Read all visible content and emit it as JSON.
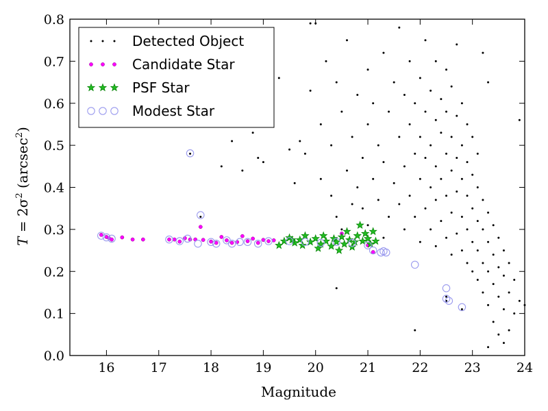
{
  "chart_data": {
    "type": "scatter",
    "title": "",
    "xlabel": "Magnitude",
    "ylabel_parts": {
      "pre": "T",
      "eq": " = 2σ",
      "sup1": "2",
      "mid": " (arcsec",
      "sup2": "2",
      "post": ")"
    },
    "xlim": [
      15.3,
      24.0
    ],
    "ylim": [
      0.0,
      0.8
    ],
    "xticks": [
      16,
      17,
      18,
      19,
      20,
      21,
      22,
      23,
      24
    ],
    "yticks": [
      0.0,
      0.1,
      0.2,
      0.3,
      0.4,
      0.5,
      0.6,
      0.7,
      0.8
    ],
    "grid": false,
    "legend_position": "top-left",
    "colors": {
      "detected": "#000000",
      "candidate": "#ff00ff",
      "psf": "#008000",
      "modest": "#9999ee"
    },
    "legend": [
      {
        "key": "detected",
        "label": "Detected Object"
      },
      {
        "key": "candidate",
        "label": "Candidate Star"
      },
      {
        "key": "psf",
        "label": "PSF Star"
      },
      {
        "key": "modest",
        "label": "Modest Star"
      }
    ],
    "series": [
      {
        "name": "Detected Object",
        "key": "detected",
        "points": [
          [
            17.6,
            0.48
          ],
          [
            17.8,
            0.33
          ],
          [
            18.2,
            0.45
          ],
          [
            18.4,
            0.51
          ],
          [
            18.6,
            0.44
          ],
          [
            18.8,
            0.53
          ],
          [
            18.9,
            0.47
          ],
          [
            19.0,
            0.46
          ],
          [
            19.1,
            0.6
          ],
          [
            19.3,
            0.66
          ],
          [
            19.5,
            0.49
          ],
          [
            19.6,
            0.41
          ],
          [
            19.7,
            0.51
          ],
          [
            19.8,
            0.48
          ],
          [
            19.9,
            0.63
          ],
          [
            19.9,
            0.79
          ],
          [
            20.0,
            0.79
          ],
          [
            20.1,
            0.42
          ],
          [
            20.1,
            0.55
          ],
          [
            20.2,
            0.7
          ],
          [
            20.3,
            0.38
          ],
          [
            20.3,
            0.5
          ],
          [
            20.4,
            0.33
          ],
          [
            20.4,
            0.65
          ],
          [
            20.5,
            0.58
          ],
          [
            20.5,
            0.3
          ],
          [
            20.6,
            0.44
          ],
          [
            20.6,
            0.75
          ],
          [
            20.7,
            0.36
          ],
          [
            20.7,
            0.52
          ],
          [
            20.8,
            0.62
          ],
          [
            20.8,
            0.4
          ],
          [
            20.9,
            0.35
          ],
          [
            20.9,
            0.47
          ],
          [
            21.0,
            0.55
          ],
          [
            21.0,
            0.31
          ],
          [
            21.0,
            0.68
          ],
          [
            21.1,
            0.42
          ],
          [
            21.1,
            0.6
          ],
          [
            21.2,
            0.37
          ],
          [
            21.2,
            0.5
          ],
          [
            21.3,
            0.28
          ],
          [
            21.3,
            0.46
          ],
          [
            21.3,
            0.72
          ],
          [
            21.4,
            0.33
          ],
          [
            21.4,
            0.58
          ],
          [
            21.5,
            0.41
          ],
          [
            21.5,
            0.65
          ],
          [
            21.6,
            0.36
          ],
          [
            21.6,
            0.52
          ],
          [
            21.6,
            0.78
          ],
          [
            21.7,
            0.3
          ],
          [
            21.7,
            0.45
          ],
          [
            21.7,
            0.62
          ],
          [
            21.8,
            0.38
          ],
          [
            21.8,
            0.55
          ],
          [
            21.8,
            0.7
          ],
          [
            21.9,
            0.33
          ],
          [
            21.9,
            0.48
          ],
          [
            21.9,
            0.6
          ],
          [
            22.0,
            0.27
          ],
          [
            22.0,
            0.42
          ],
          [
            22.0,
            0.52
          ],
          [
            22.0,
            0.66
          ],
          [
            22.1,
            0.35
          ],
          [
            22.1,
            0.47
          ],
          [
            22.1,
            0.58
          ],
          [
            22.1,
            0.75
          ],
          [
            22.2,
            0.3
          ],
          [
            22.2,
            0.4
          ],
          [
            22.2,
            0.5
          ],
          [
            22.2,
            0.63
          ],
          [
            22.3,
            0.26
          ],
          [
            22.3,
            0.37
          ],
          [
            22.3,
            0.45
          ],
          [
            22.3,
            0.56
          ],
          [
            22.3,
            0.7
          ],
          [
            22.4,
            0.32
          ],
          [
            22.4,
            0.42
          ],
          [
            22.4,
            0.53
          ],
          [
            22.4,
            0.61
          ],
          [
            22.5,
            0.28
          ],
          [
            22.5,
            0.38
          ],
          [
            22.5,
            0.48
          ],
          [
            22.5,
            0.58
          ],
          [
            22.5,
            0.68
          ],
          [
            22.6,
            0.24
          ],
          [
            22.6,
            0.34
          ],
          [
            22.6,
            0.44
          ],
          [
            22.6,
            0.52
          ],
          [
            22.6,
            0.64
          ],
          [
            22.7,
            0.29
          ],
          [
            22.7,
            0.39
          ],
          [
            22.7,
            0.47
          ],
          [
            22.7,
            0.57
          ],
          [
            22.7,
            0.74
          ],
          [
            22.8,
            0.25
          ],
          [
            22.8,
            0.33
          ],
          [
            22.8,
            0.42
          ],
          [
            22.8,
            0.5
          ],
          [
            22.8,
            0.6
          ],
          [
            22.9,
            0.22
          ],
          [
            22.9,
            0.3
          ],
          [
            22.9,
            0.38
          ],
          [
            22.9,
            0.46
          ],
          [
            22.9,
            0.55
          ],
          [
            23.0,
            0.2
          ],
          [
            23.0,
            0.27
          ],
          [
            23.0,
            0.35
          ],
          [
            23.0,
            0.43
          ],
          [
            23.0,
            0.52
          ],
          [
            23.1,
            0.18
          ],
          [
            23.1,
            0.25
          ],
          [
            23.1,
            0.32
          ],
          [
            23.1,
            0.4
          ],
          [
            23.1,
            0.48
          ],
          [
            23.2,
            0.15
          ],
          [
            23.2,
            0.22
          ],
          [
            23.2,
            0.3
          ],
          [
            23.2,
            0.37
          ],
          [
            23.2,
            0.72
          ],
          [
            23.3,
            0.12
          ],
          [
            23.3,
            0.2
          ],
          [
            23.3,
            0.27
          ],
          [
            23.3,
            0.34
          ],
          [
            23.3,
            0.65
          ],
          [
            23.4,
            0.08
          ],
          [
            23.4,
            0.17
          ],
          [
            23.4,
            0.24
          ],
          [
            23.4,
            0.31
          ],
          [
            23.5,
            0.05
          ],
          [
            23.5,
            0.14
          ],
          [
            23.5,
            0.21
          ],
          [
            23.5,
            0.28
          ],
          [
            23.6,
            0.03
          ],
          [
            23.6,
            0.11
          ],
          [
            23.6,
            0.19
          ],
          [
            23.6,
            0.25
          ],
          [
            23.7,
            0.06
          ],
          [
            23.7,
            0.15
          ],
          [
            23.7,
            0.22
          ],
          [
            23.8,
            0.1
          ],
          [
            23.8,
            0.18
          ],
          [
            23.9,
            0.13
          ],
          [
            23.9,
            0.56
          ],
          [
            23.3,
            0.02
          ],
          [
            24.0,
            0.12
          ],
          [
            20.4,
            0.16
          ],
          [
            21.9,
            0.06
          ],
          [
            22.5,
            0.14
          ],
          [
            22.5,
            0.13
          ],
          [
            22.8,
            0.11
          ]
        ]
      },
      {
        "name": "Candidate Star",
        "key": "candidate",
        "points": [
          [
            15.9,
            0.287
          ],
          [
            16.0,
            0.282
          ],
          [
            16.05,
            0.279
          ],
          [
            16.1,
            0.276
          ],
          [
            16.3,
            0.281
          ],
          [
            16.5,
            0.276
          ],
          [
            16.7,
            0.276
          ],
          [
            17.2,
            0.276
          ],
          [
            17.3,
            0.276
          ],
          [
            17.4,
            0.271
          ],
          [
            17.5,
            0.279
          ],
          [
            17.6,
            0.276
          ],
          [
            17.7,
            0.276
          ],
          [
            17.8,
            0.306
          ],
          [
            17.85,
            0.275
          ],
          [
            18.0,
            0.271
          ],
          [
            18.1,
            0.268
          ],
          [
            18.2,
            0.282
          ],
          [
            18.3,
            0.274
          ],
          [
            18.4,
            0.268
          ],
          [
            18.5,
            0.27
          ],
          [
            18.6,
            0.284
          ],
          [
            18.7,
            0.272
          ],
          [
            18.8,
            0.278
          ],
          [
            18.9,
            0.268
          ],
          [
            19.0,
            0.275
          ],
          [
            19.1,
            0.272
          ],
          [
            19.2,
            0.274
          ],
          [
            20.5,
            0.29
          ],
          [
            21.0,
            0.262
          ],
          [
            21.1,
            0.246
          ]
        ]
      },
      {
        "name": "PSF Star",
        "key": "psf",
        "points": [
          [
            19.3,
            0.262
          ],
          [
            19.4,
            0.272
          ],
          [
            19.5,
            0.28
          ],
          [
            19.6,
            0.268
          ],
          [
            19.7,
            0.275
          ],
          [
            19.75,
            0.262
          ],
          [
            19.8,
            0.285
          ],
          [
            19.9,
            0.27
          ],
          [
            20.0,
            0.278
          ],
          [
            20.1,
            0.265
          ],
          [
            20.15,
            0.285
          ],
          [
            20.2,
            0.272
          ],
          [
            20.3,
            0.26
          ],
          [
            20.35,
            0.278
          ],
          [
            20.4,
            0.27
          ],
          [
            20.5,
            0.282
          ],
          [
            20.55,
            0.265
          ],
          [
            20.6,
            0.295
          ],
          [
            20.65,
            0.275
          ],
          [
            20.7,
            0.258
          ],
          [
            20.75,
            0.27
          ],
          [
            20.8,
            0.285
          ],
          [
            20.85,
            0.31
          ],
          [
            20.9,
            0.272
          ],
          [
            20.95,
            0.29
          ],
          [
            21.0,
            0.278
          ],
          [
            21.05,
            0.265
          ],
          [
            21.1,
            0.295
          ],
          [
            21.15,
            0.272
          ],
          [
            20.45,
            0.25
          ],
          [
            20.05,
            0.255
          ],
          [
            19.55,
            0.275
          ]
        ]
      },
      {
        "name": "Modest Star",
        "key": "modest",
        "points": [
          [
            15.9,
            0.285
          ],
          [
            16.0,
            0.281
          ],
          [
            16.1,
            0.278
          ],
          [
            17.2,
            0.276
          ],
          [
            17.4,
            0.272
          ],
          [
            17.55,
            0.278
          ],
          [
            17.6,
            0.481
          ],
          [
            17.8,
            0.334
          ],
          [
            17.75,
            0.266
          ],
          [
            18.0,
            0.27
          ],
          [
            18.1,
            0.266
          ],
          [
            18.3,
            0.274
          ],
          [
            18.4,
            0.266
          ],
          [
            18.55,
            0.27
          ],
          [
            18.7,
            0.27
          ],
          [
            18.9,
            0.266
          ],
          [
            19.1,
            0.272
          ],
          [
            19.5,
            0.272
          ],
          [
            19.8,
            0.27
          ],
          [
            20.1,
            0.268
          ],
          [
            20.4,
            0.27
          ],
          [
            20.7,
            0.268
          ],
          [
            21.0,
            0.262
          ],
          [
            21.1,
            0.25
          ],
          [
            21.25,
            0.245
          ],
          [
            21.3,
            0.248
          ],
          [
            21.35,
            0.245
          ],
          [
            21.9,
            0.216
          ],
          [
            22.5,
            0.16
          ],
          [
            22.5,
            0.135
          ],
          [
            22.55,
            0.13
          ],
          [
            22.8,
            0.115
          ]
        ]
      }
    ]
  }
}
